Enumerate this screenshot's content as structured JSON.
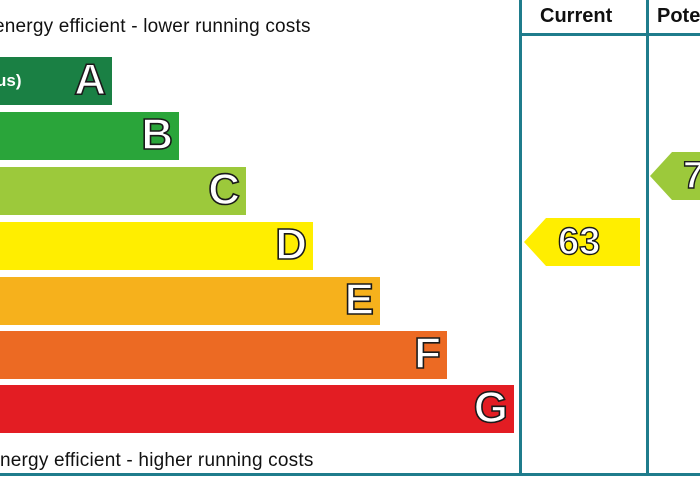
{
  "captions": {
    "top": "energy efficient - lower running costs",
    "bottom": "nergy efficient - higher running costs"
  },
  "columns": {
    "current": "Current",
    "potential": "Pote"
  },
  "bands": [
    {
      "letter": "A",
      "range": "us)",
      "color": "#1a8044"
    },
    {
      "letter": "B",
      "range": "",
      "color": "#2aa53a"
    },
    {
      "letter": "C",
      "range": "",
      "color": "#9cc93b"
    },
    {
      "letter": "D",
      "range": "",
      "color": "#ffee00"
    },
    {
      "letter": "E",
      "range": "",
      "color": "#f6b11c"
    },
    {
      "letter": "F",
      "range": "",
      "color": "#ec6a23"
    },
    {
      "letter": "G",
      "range": "",
      "color": "#e31d23"
    }
  ],
  "ratings": {
    "current": {
      "value": "63",
      "band": "D",
      "color": "#ffee00"
    },
    "potential": {
      "value": "7",
      "band": "C",
      "color": "#9cc93b"
    }
  },
  "colors": {
    "frame": "#1f7c8c"
  }
}
